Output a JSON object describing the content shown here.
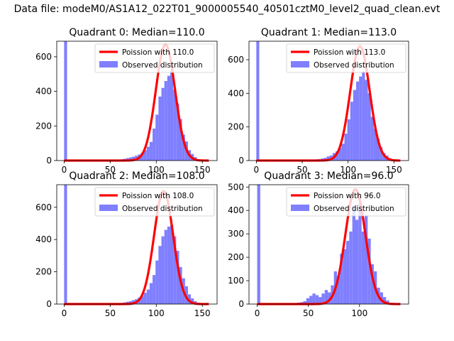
{
  "figure": {
    "suptitle": "Data file: modeM0/AS1A12_022T01_9000005540_40501cztM0_level2_quad_clean.evt"
  },
  "colors": {
    "poisson": "#ff0000",
    "observed": "#7f7fff",
    "axes": "#000000"
  },
  "chart_data": [
    {
      "type": "bar",
      "title": "Quadrant 0: Median=110.0",
      "xlim": [
        -8,
        166
      ],
      "ylim": [
        0,
        690
      ],
      "xticks": [
        0,
        50,
        100,
        150
      ],
      "yticks": [
        0,
        200,
        400,
        600
      ],
      "legend_placement": "upper-right",
      "series": [
        {
          "name": "Poission with 110.0",
          "kind": "line",
          "mean": 110.0,
          "x_range": [
            0,
            157
          ],
          "peak": 670
        },
        {
          "name": "Observed distribution",
          "kind": "histogram",
          "bin_width": 3.2,
          "bins": [
            {
              "x": 0,
              "y": 690
            },
            {
              "x": 51.2,
              "y": 3
            },
            {
              "x": 54.4,
              "y": 4
            },
            {
              "x": 57.6,
              "y": 5
            },
            {
              "x": 60.8,
              "y": 7
            },
            {
              "x": 64,
              "y": 10
            },
            {
              "x": 67.2,
              "y": 14
            },
            {
              "x": 70.4,
              "y": 18
            },
            {
              "x": 73.6,
              "y": 22
            },
            {
              "x": 76.8,
              "y": 28
            },
            {
              "x": 80,
              "y": 35
            },
            {
              "x": 83.2,
              "y": 45
            },
            {
              "x": 86.4,
              "y": 60
            },
            {
              "x": 89.6,
              "y": 80
            },
            {
              "x": 92.8,
              "y": 108
            },
            {
              "x": 96,
              "y": 185
            },
            {
              "x": 99.2,
              "y": 265
            },
            {
              "x": 102.4,
              "y": 370
            },
            {
              "x": 105.6,
              "y": 420
            },
            {
              "x": 108.8,
              "y": 460
            },
            {
              "x": 112,
              "y": 490
            },
            {
              "x": 115.2,
              "y": 520
            },
            {
              "x": 118.4,
              "y": 410
            },
            {
              "x": 121.6,
              "y": 330
            },
            {
              "x": 124.8,
              "y": 240
            },
            {
              "x": 128,
              "y": 150
            },
            {
              "x": 131.2,
              "y": 110
            },
            {
              "x": 134.4,
              "y": 60
            },
            {
              "x": 137.6,
              "y": 38
            },
            {
              "x": 140.8,
              "y": 20
            },
            {
              "x": 144,
              "y": 8
            },
            {
              "x": 147.2,
              "y": 4
            },
            {
              "x": 150.4,
              "y": 2
            }
          ]
        }
      ]
    },
    {
      "type": "bar",
      "title": "Quadrant 1: Median=113.0",
      "xlim": [
        -8,
        166
      ],
      "ylim": [
        0,
        710
      ],
      "xticks": [
        0,
        50,
        100,
        150
      ],
      "yticks": [
        0,
        200,
        400,
        600
      ],
      "legend_placement": "upper-right",
      "series": [
        {
          "name": "Poission with 113.0",
          "kind": "line",
          "mean": 113.0,
          "x_range": [
            0,
            157
          ],
          "peak": 680
        },
        {
          "name": "Observed distribution",
          "kind": "histogram",
          "bin_width": 3.2,
          "bins": [
            {
              "x": 0,
              "y": 710
            },
            {
              "x": 54.4,
              "y": 3
            },
            {
              "x": 57.6,
              "y": 4
            },
            {
              "x": 60.8,
              "y": 5
            },
            {
              "x": 64,
              "y": 7
            },
            {
              "x": 67.2,
              "y": 9
            },
            {
              "x": 70.4,
              "y": 12
            },
            {
              "x": 73.6,
              "y": 16
            },
            {
              "x": 76.8,
              "y": 25
            },
            {
              "x": 80,
              "y": 30
            },
            {
              "x": 83.2,
              "y": 45
            },
            {
              "x": 86.4,
              "y": 55
            },
            {
              "x": 89.6,
              "y": 75
            },
            {
              "x": 92.8,
              "y": 100
            },
            {
              "x": 96,
              "y": 160
            },
            {
              "x": 99.2,
              "y": 245
            },
            {
              "x": 102.4,
              "y": 350
            },
            {
              "x": 105.6,
              "y": 420
            },
            {
              "x": 108.8,
              "y": 470
            },
            {
              "x": 112,
              "y": 500
            },
            {
              "x": 115.2,
              "y": 530
            },
            {
              "x": 118.4,
              "y": 480
            },
            {
              "x": 121.6,
              "y": 400
            },
            {
              "x": 124.8,
              "y": 260
            },
            {
              "x": 128,
              "y": 190
            },
            {
              "x": 131.2,
              "y": 130
            },
            {
              "x": 134.4,
              "y": 80
            },
            {
              "x": 137.6,
              "y": 45
            },
            {
              "x": 140.8,
              "y": 30
            },
            {
              "x": 144,
              "y": 15
            },
            {
              "x": 147.2,
              "y": 8
            },
            {
              "x": 150.4,
              "y": 3
            }
          ]
        }
      ]
    },
    {
      "type": "bar",
      "title": "Quadrant 2: Median=108.0",
      "xlim": [
        -8,
        166
      ],
      "ylim": [
        0,
        740
      ],
      "xticks": [
        0,
        50,
        100,
        150
      ],
      "yticks": [
        0,
        200,
        400,
        600
      ],
      "legend_placement": "upper-right",
      "series": [
        {
          "name": "Poission with 108.0",
          "kind": "line",
          "mean": 108.0,
          "x_range": [
            0,
            157
          ],
          "peak": 700
        },
        {
          "name": "Observed distribution",
          "kind": "histogram",
          "bin_width": 3.2,
          "bins": [
            {
              "x": 0,
              "y": 740
            },
            {
              "x": 51.2,
              "y": 3
            },
            {
              "x": 54.4,
              "y": 4
            },
            {
              "x": 57.6,
              "y": 5
            },
            {
              "x": 60.8,
              "y": 7
            },
            {
              "x": 64,
              "y": 10
            },
            {
              "x": 67.2,
              "y": 14
            },
            {
              "x": 70.4,
              "y": 18
            },
            {
              "x": 73.6,
              "y": 24
            },
            {
              "x": 76.8,
              "y": 30
            },
            {
              "x": 80,
              "y": 40
            },
            {
              "x": 83.2,
              "y": 50
            },
            {
              "x": 86.4,
              "y": 70
            },
            {
              "x": 89.6,
              "y": 90
            },
            {
              "x": 92.8,
              "y": 130
            },
            {
              "x": 96,
              "y": 180
            },
            {
              "x": 99.2,
              "y": 270
            },
            {
              "x": 102.4,
              "y": 360
            },
            {
              "x": 105.6,
              "y": 420
            },
            {
              "x": 108.8,
              "y": 460
            },
            {
              "x": 112,
              "y": 480
            },
            {
              "x": 115.2,
              "y": 490
            },
            {
              "x": 118.4,
              "y": 420
            },
            {
              "x": 121.6,
              "y": 330
            },
            {
              "x": 124.8,
              "y": 230
            },
            {
              "x": 128,
              "y": 160
            },
            {
              "x": 131.2,
              "y": 110
            },
            {
              "x": 134.4,
              "y": 60
            },
            {
              "x": 137.6,
              "y": 35
            },
            {
              "x": 140.8,
              "y": 18
            },
            {
              "x": 144,
              "y": 8
            },
            {
              "x": 147.2,
              "y": 3
            }
          ]
        }
      ]
    },
    {
      "type": "bar",
      "title": "Quadrant 3: Median=96.0",
      "xlim": [
        -8,
        148
      ],
      "ylim": [
        0,
        510
      ],
      "xticks": [
        0,
        50,
        100
      ],
      "yticks": [
        0,
        100,
        200,
        300,
        400,
        500
      ],
      "legend_placement": "upper-right",
      "series": [
        {
          "name": "Poission with 96.0",
          "kind": "line",
          "mean": 96.0,
          "x_range": [
            0,
            140
          ],
          "peak": 490
        },
        {
          "name": "Observed distribution",
          "kind": "histogram",
          "bin_width": 3.0,
          "bins": [
            {
              "x": 0,
              "y": 510
            },
            {
              "x": 36,
              "y": 4
            },
            {
              "x": 39,
              "y": 6
            },
            {
              "x": 42,
              "y": 8
            },
            {
              "x": 45,
              "y": 12
            },
            {
              "x": 48,
              "y": 25
            },
            {
              "x": 51,
              "y": 35
            },
            {
              "x": 54,
              "y": 45
            },
            {
              "x": 57,
              "y": 38
            },
            {
              "x": 60,
              "y": 30
            },
            {
              "x": 63,
              "y": 45
            },
            {
              "x": 66,
              "y": 60
            },
            {
              "x": 69,
              "y": 50
            },
            {
              "x": 72,
              "y": 80
            },
            {
              "x": 75,
              "y": 140
            },
            {
              "x": 78,
              "y": 120
            },
            {
              "x": 81,
              "y": 215
            },
            {
              "x": 84,
              "y": 235
            },
            {
              "x": 87,
              "y": 270
            },
            {
              "x": 90,
              "y": 310
            },
            {
              "x": 93,
              "y": 420
            },
            {
              "x": 96,
              "y": 360
            },
            {
              "x": 99,
              "y": 430
            },
            {
              "x": 102,
              "y": 310
            },
            {
              "x": 105,
              "y": 380
            },
            {
              "x": 108,
              "y": 280
            },
            {
              "x": 111,
              "y": 170
            },
            {
              "x": 114,
              "y": 140
            },
            {
              "x": 117,
              "y": 70
            },
            {
              "x": 120,
              "y": 50
            },
            {
              "x": 123,
              "y": 30
            },
            {
              "x": 126,
              "y": 15
            },
            {
              "x": 129,
              "y": 6
            },
            {
              "x": 132,
              "y": 3
            }
          ]
        }
      ]
    }
  ]
}
